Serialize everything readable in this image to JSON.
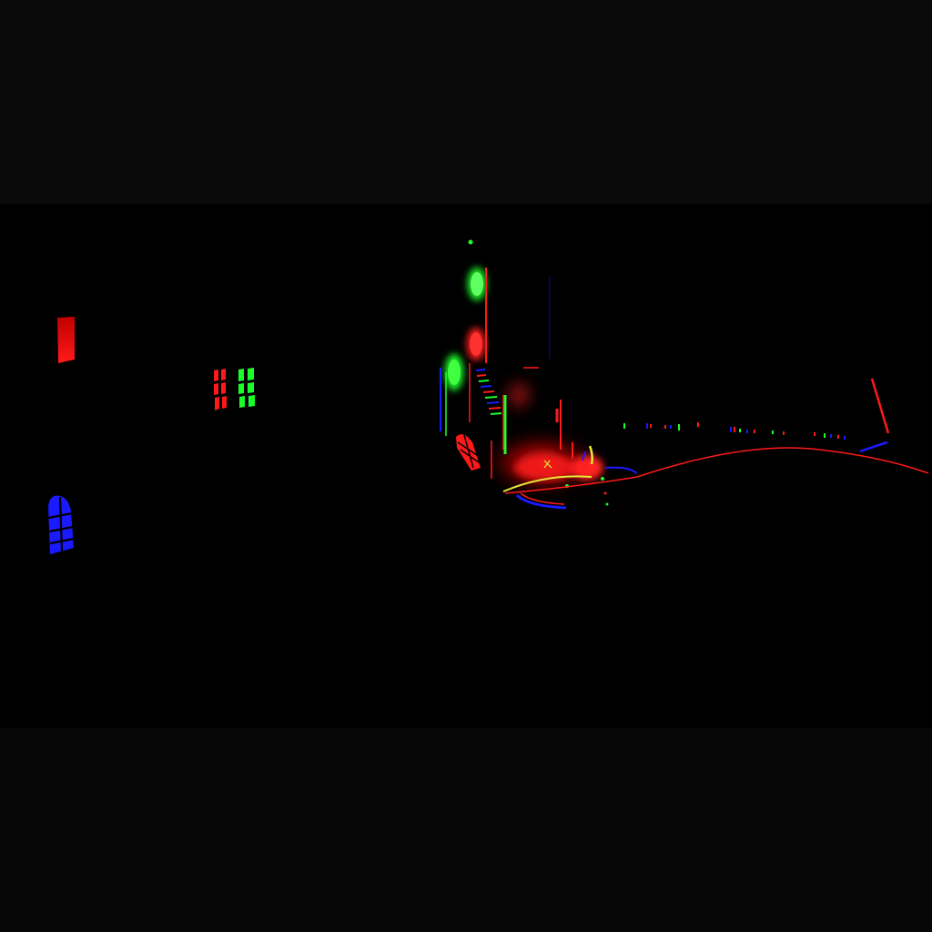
{
  "scene": {
    "colors": {
      "top_bar": "#090909",
      "bottom_bar": "#060606",
      "viewport": "#000000",
      "red": "#ff1a1a",
      "green": "#1aff2a",
      "blue": "#1a1aff",
      "yellow": "#e8e83a"
    },
    "elements": [
      "red-window",
      "red-lattice-window",
      "green-lattice-window",
      "blue-arched-window",
      "glowing-lanterns",
      "neon-tower-cluster",
      "red-glow-pool",
      "horizon-curve",
      "distant-lights",
      "red-light-streak"
    ]
  }
}
